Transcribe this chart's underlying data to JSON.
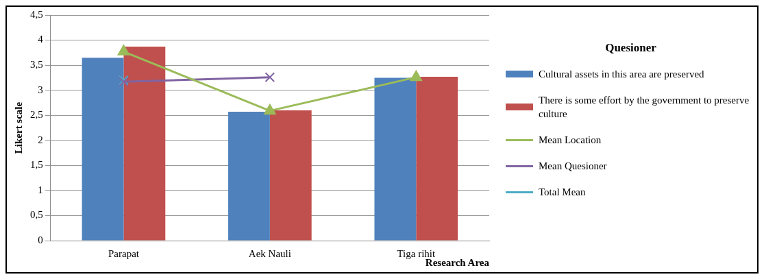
{
  "chart_data": {
    "type": "bar",
    "xlabel": "Research Area",
    "ylabel": "Likert scale",
    "legend_title": "Quesioner",
    "legend": "right",
    "grid": "y",
    "categories": [
      "Parapat",
      "Aek Nauli",
      "Tiga rihit"
    ],
    "ylim": [
      0,
      4.5
    ],
    "yticks": [
      0,
      {
        "value": 0.5,
        "label": "0,5"
      },
      1,
      {
        "value": 1.5,
        "label": "1,5"
      },
      2,
      {
        "value": 2.5,
        "label": "2,5"
      },
      3,
      {
        "value": 3.5,
        "label": "3,5"
      },
      4,
      {
        "value": 4.5,
        "label": "4,5"
      }
    ],
    "series": [
      {
        "name": "Cultural assets in this area are preserved",
        "color": "#4f81bd",
        "values": [
          3.65,
          2.57,
          3.25
        ]
      },
      {
        "name": "There is some effort by the government to preserve culture",
        "color": "#c0504d",
        "values": [
          3.87,
          2.6,
          3.27
        ]
      },
      {
        "name": "Mean Location",
        "type": "line",
        "marker": "triangle",
        "color": "#9bbb59",
        "values": [
          3.77,
          2.59,
          3.26
        ]
      },
      {
        "name": "Mean Quesioner",
        "type": "line",
        "marker": "cross",
        "color": "#8064a2",
        "values": [
          3.17,
          3.26,
          null
        ]
      },
      {
        "name": "Total Mean",
        "type": "line",
        "marker": "cross",
        "color": "#4bacc6",
        "values": [
          3.2,
          null,
          null
        ]
      }
    ]
  }
}
